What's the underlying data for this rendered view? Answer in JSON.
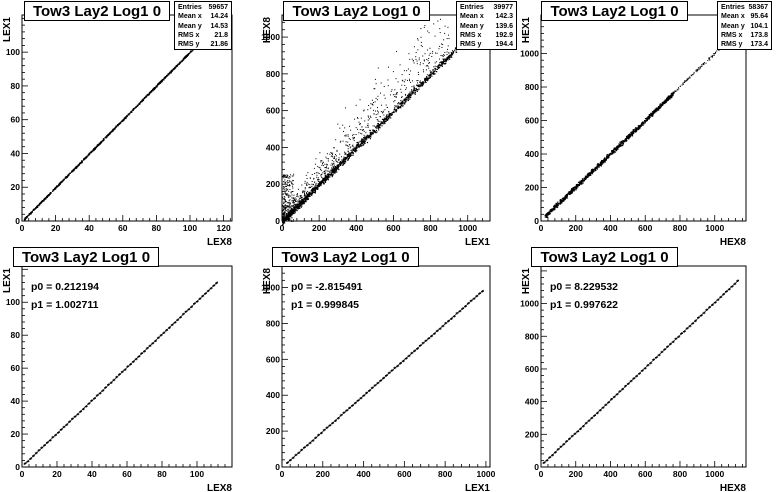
{
  "chart_data": [
    {
      "type": "scatter",
      "title": "Tow3 Lay2 Log1 0",
      "xlabel": "LEX8",
      "ylabel": "LEX1",
      "xlim": [
        0,
        125
      ],
      "ylim": [
        0,
        122
      ],
      "xticks": [
        "0",
        "20",
        "40",
        "60",
        "80",
        "100",
        "120"
      ],
      "yticks": [
        "0",
        "20",
        "40",
        "60",
        "80",
        "100"
      ],
      "stats": [
        [
          "Entries",
          "59657"
        ],
        [
          "Mean x",
          "14.24"
        ],
        [
          "Mean y",
          "14.53"
        ],
        [
          "RMS x",
          "21.8"
        ],
        [
          "RMS y",
          "21.86"
        ]
      ],
      "series": [
        {
          "relation": "y = 1.0027 x + 0.21",
          "x": [
            2,
            112
          ]
        }
      ]
    },
    {
      "type": "scatter",
      "title": "Tow3 Lay2 Log1 0",
      "xlabel": "LEX1",
      "ylabel": "HEX8",
      "xlim": [
        0,
        1120
      ],
      "ylim": [
        0,
        1120
      ],
      "xticks": [
        "0",
        "200",
        "400",
        "600",
        "800",
        "1000"
      ],
      "yticks": [
        "0",
        "200",
        "400",
        "600",
        "800",
        "1000"
      ],
      "stats": [
        [
          "Entries",
          "39977"
        ],
        [
          "Mean x",
          "142.3"
        ],
        [
          "Mean y",
          "139.6"
        ],
        [
          "RMS x",
          "192.9"
        ],
        [
          "RMS y",
          "194.4"
        ]
      ],
      "series": [
        {
          "relation": "y ≈ x with scattered outliers above",
          "x": [
            0,
            1000
          ]
        }
      ]
    },
    {
      "type": "scatter",
      "title": "Tow3 Lay2 Log1 0",
      "xlabel": "HEX8",
      "ylabel": "HEX1",
      "xlim": [
        0,
        1180
      ],
      "ylim": [
        0,
        1230
      ],
      "xticks": [
        "0",
        "200",
        "400",
        "600",
        "800",
        "1000"
      ],
      "yticks": [
        "0",
        "200",
        "400",
        "600",
        "800",
        "1000"
      ],
      "stats": [
        [
          "Entries",
          "58367"
        ],
        [
          "Mean x",
          "95.64"
        ],
        [
          "Mean y",
          "104.1"
        ],
        [
          "RMS x",
          "173.8"
        ],
        [
          "RMS y",
          "173.4"
        ]
      ],
      "series": [
        {
          "relation": "y = 0.9976 x + 8.23",
          "x": [
            20,
            760
          ]
        }
      ]
    },
    {
      "type": "line",
      "title": "Tow3 Lay2 Log1 0",
      "xlabel": "LEX8",
      "ylabel": "LEX1",
      "xlim": [
        0,
        120
      ],
      "ylim": [
        0,
        122
      ],
      "xticks": [
        "0",
        "20",
        "40",
        "60",
        "80",
        "100"
      ],
      "yticks": [
        "0",
        "20",
        "40",
        "60",
        "80",
        "100"
      ],
      "fit": [
        "p0 = 0.212194",
        "p1 = 1.002711"
      ],
      "p0": 0.212194,
      "p1": 1.002711,
      "range": [
        1,
        112
      ]
    },
    {
      "type": "line",
      "title": "Tow3 Lay2 Log1 0",
      "xlabel": "LEX1",
      "ylabel": "HEX8",
      "xlim": [
        0,
        1020
      ],
      "ylim": [
        0,
        1120
      ],
      "xticks": [
        "0",
        "200",
        "400",
        "600",
        "800",
        "1000"
      ],
      "yticks": [
        "0",
        "200",
        "400",
        "600",
        "800",
        "1000"
      ],
      "fit": [
        "p0 = -2.815491",
        "p1 = 0.999845"
      ],
      "p0": -2.815491,
      "p1": 0.999845,
      "range": [
        20,
        990
      ]
    },
    {
      "type": "line",
      "title": "Tow3 Lay2 Log1 0",
      "xlabel": "HEX8",
      "ylabel": "HEX1",
      "xlim": [
        0,
        1180
      ],
      "ylim": [
        0,
        1230
      ],
      "xticks": [
        "0",
        "200",
        "400",
        "600",
        "800",
        "1000"
      ],
      "yticks": [
        "0",
        "200",
        "400",
        "600",
        "800",
        "1000"
      ],
      "fit": [
        "p0 = 8.229532",
        "p1 = 0.997622"
      ],
      "p0": 8.229532,
      "p1": 0.997622,
      "range": [
        10,
        1140
      ]
    }
  ]
}
